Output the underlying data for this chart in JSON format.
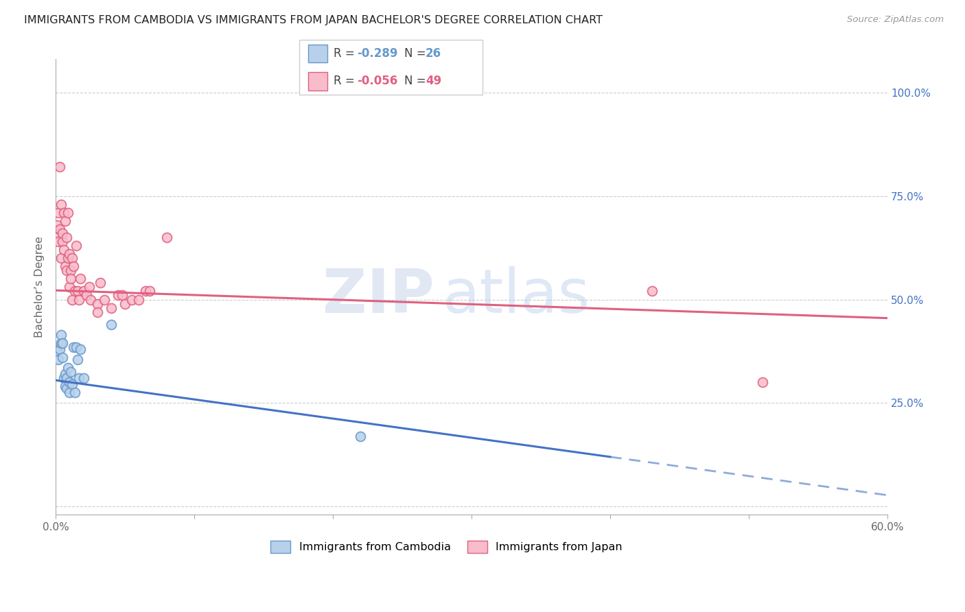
{
  "title": "IMMIGRANTS FROM CAMBODIA VS IMMIGRANTS FROM JAPAN BACHELOR'S DEGREE CORRELATION CHART",
  "source": "Source: ZipAtlas.com",
  "ylabel": "Bachelor’s Degree",
  "watermark_zip": "ZIP",
  "watermark_atlas": "atlas",
  "xlim": [
    0.0,
    0.6
  ],
  "ylim": [
    -0.02,
    1.08
  ],
  "yticks": [
    0.0,
    0.25,
    0.5,
    0.75,
    1.0
  ],
  "ytick_labels_right": [
    "",
    "25.0%",
    "50.0%",
    "75.0%",
    "100.0%"
  ],
  "right_ytick_color": "#4472c4",
  "cambodia_face_color": "#b8d0ea",
  "cambodia_edge_color": "#6699cc",
  "japan_face_color": "#f8bccb",
  "japan_edge_color": "#e06080",
  "legend_R_val_cambodia": "-0.289",
  "legend_N_val_cambodia": "26",
  "legend_R_val_japan": "-0.056",
  "legend_N_val_japan": "49",
  "cambodia_points_x": [
    0.001,
    0.002,
    0.003,
    0.004,
    0.004,
    0.005,
    0.005,
    0.006,
    0.007,
    0.007,
    0.008,
    0.008,
    0.009,
    0.01,
    0.01,
    0.011,
    0.012,
    0.013,
    0.014,
    0.015,
    0.016,
    0.017,
    0.018,
    0.02,
    0.04,
    0.22
  ],
  "cambodia_points_y": [
    0.375,
    0.355,
    0.38,
    0.395,
    0.415,
    0.36,
    0.395,
    0.31,
    0.29,
    0.32,
    0.285,
    0.31,
    0.335,
    0.275,
    0.3,
    0.325,
    0.295,
    0.385,
    0.275,
    0.385,
    0.355,
    0.31,
    0.38,
    0.31,
    0.44,
    0.17
  ],
  "japan_points_x": [
    0.001,
    0.001,
    0.002,
    0.002,
    0.003,
    0.003,
    0.004,
    0.004,
    0.005,
    0.005,
    0.006,
    0.006,
    0.007,
    0.007,
    0.008,
    0.008,
    0.009,
    0.009,
    0.01,
    0.01,
    0.011,
    0.011,
    0.012,
    0.012,
    0.013,
    0.014,
    0.015,
    0.016,
    0.017,
    0.018,
    0.02,
    0.022,
    0.024,
    0.025,
    0.03,
    0.03,
    0.032,
    0.035,
    0.04,
    0.045,
    0.048,
    0.05,
    0.055,
    0.06,
    0.065,
    0.068,
    0.08,
    0.43,
    0.51
  ],
  "japan_points_y": [
    0.65,
    0.68,
    0.64,
    0.71,
    0.67,
    0.82,
    0.6,
    0.73,
    0.64,
    0.66,
    0.71,
    0.62,
    0.69,
    0.58,
    0.65,
    0.57,
    0.6,
    0.71,
    0.53,
    0.61,
    0.57,
    0.55,
    0.6,
    0.5,
    0.58,
    0.52,
    0.63,
    0.52,
    0.5,
    0.55,
    0.52,
    0.51,
    0.53,
    0.5,
    0.49,
    0.47,
    0.54,
    0.5,
    0.48,
    0.51,
    0.51,
    0.49,
    0.5,
    0.5,
    0.52,
    0.52,
    0.65,
    0.52,
    0.3
  ],
  "line_blue_color": "#4472c4",
  "line_pink_color": "#e06080",
  "title_fontsize": 11.5,
  "source_fontsize": 9.5,
  "marker_size": 100,
  "grid_color": "#cccccc",
  "background_color": "#ffffff",
  "axis_color": "#aaaaaa",
  "label_color": "#666666",
  "blue_line_x0": 0.0,
  "blue_line_y0": 0.305,
  "blue_line_x1": 0.4,
  "blue_line_y1": 0.12,
  "pink_line_x0": 0.0,
  "pink_line_y0": 0.522,
  "pink_line_x1": 0.6,
  "pink_line_y1": 0.455
}
